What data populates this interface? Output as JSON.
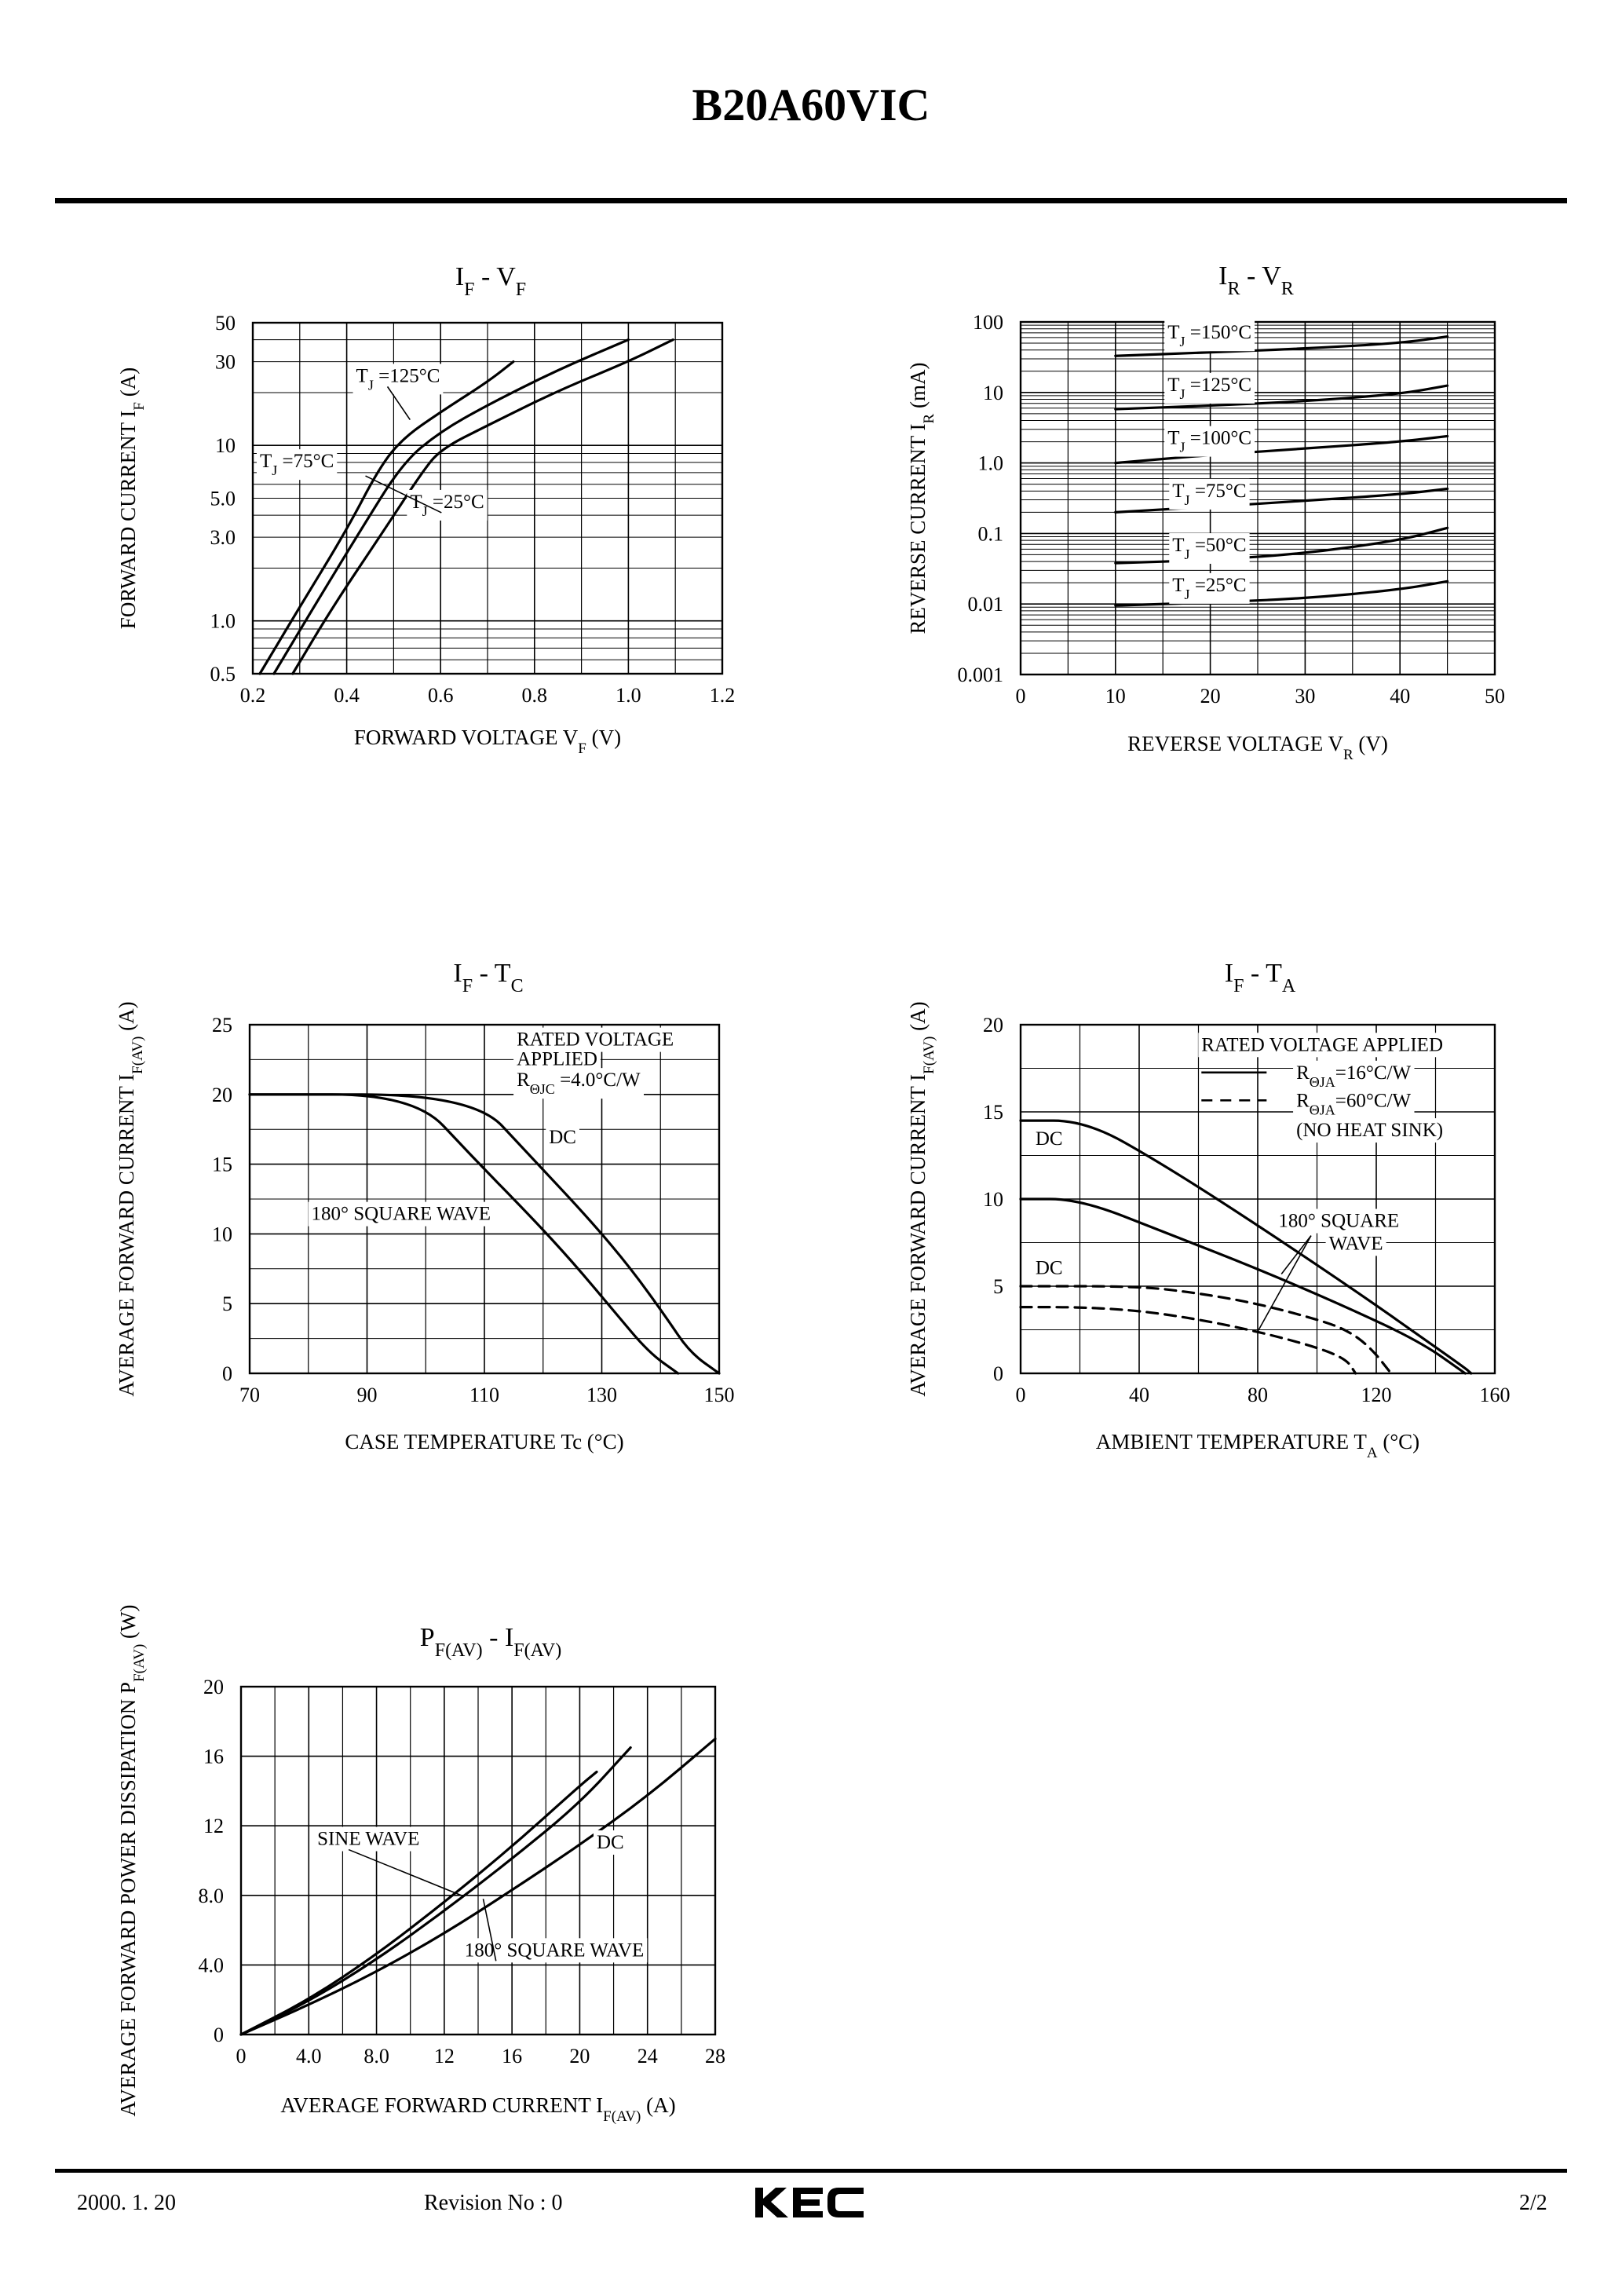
{
  "document": {
    "title": "B20A60VIC",
    "footer": {
      "date": "2000. 1. 20",
      "revision": "Revision No : 0",
      "page": "2/2",
      "brand": "KEC"
    }
  },
  "chart_data": [
    {
      "id": "if_vf",
      "type": "line",
      "title": "I_F - V_F",
      "xlabel": "FORWARD VOLTAGE V_F (V)",
      "ylabel": "FORWARD CURRENT I_F (A)",
      "x_scale": "linear",
      "y_scale": "log",
      "xlim": [
        0.2,
        1.2
      ],
      "ylim": [
        0.5,
        50
      ],
      "x_ticks": [
        "0.2",
        "0.4",
        "0.6",
        "0.8",
        "1.0",
        "1.2"
      ],
      "y_tick_labels": [
        {
          "v": 0.5,
          "t": "0.5"
        },
        {
          "v": 1,
          "t": "1.0"
        },
        {
          "v": 3,
          "t": "3.0"
        },
        {
          "v": 5,
          "t": "5.0"
        },
        {
          "v": 10,
          "t": "10"
        },
        {
          "v": 30,
          "t": "30"
        },
        {
          "v": 50,
          "t": "50"
        }
      ],
      "grid": true,
      "series": [
        {
          "name": "T_J =125°C",
          "points": [
            [
              0.215,
              0.5
            ],
            [
              0.3,
              1.2
            ],
            [
              0.4,
              3.3
            ],
            [
              0.47,
              7.5
            ],
            [
              0.52,
              11
            ],
            [
              0.6,
              15.5
            ],
            [
              0.7,
              23
            ],
            [
              0.755,
              30
            ]
          ]
        },
        {
          "name": "T_J =75°C",
          "points": [
            [
              0.245,
              0.5
            ],
            [
              0.33,
              1.2
            ],
            [
              0.43,
              3.3
            ],
            [
              0.52,
              8
            ],
            [
              0.6,
              12
            ],
            [
              0.7,
              17
            ],
            [
              0.85,
              27
            ],
            [
              1.0,
              40
            ]
          ]
        },
        {
          "name": "T_J =25°C",
          "points": [
            [
              0.285,
              0.5
            ],
            [
              0.37,
              1.2
            ],
            [
              0.48,
              3.3
            ],
            [
              0.56,
              7
            ],
            [
              0.6,
              9.5
            ],
            [
              0.7,
              13
            ],
            [
              0.85,
              20.5
            ],
            [
              1.0,
              30
            ],
            [
              1.095,
              40
            ]
          ]
        }
      ],
      "annotations": [
        {
          "base": "T",
          "sub": "J",
          "text": " =125°C",
          "dx": 0.42,
          "dy": 23,
          "leader_to": [
            0.535,
            14
          ]
        },
        {
          "base": "T",
          "sub": "J",
          "text": " =75°C",
          "dx": 0.215,
          "dy": 7.5
        },
        {
          "base": "T",
          "sub": "J",
          "text": " =25°C",
          "dx": 0.535,
          "dy": 4.4,
          "leader_to": [
            0.44,
            6.7
          ]
        }
      ]
    },
    {
      "id": "ir_vr",
      "type": "line",
      "title": "I_R - V_R",
      "xlabel": "REVERSE VOLTAGE V_R (V)",
      "ylabel": "REVERSE CURRENT I_R (mA)",
      "x_scale": "linear",
      "y_scale": "log",
      "xlim": [
        0,
        50
      ],
      "ylim": [
        0.001,
        100
      ],
      "x_ticks": [
        "0",
        "10",
        "20",
        "30",
        "40",
        "50"
      ],
      "y_tick_labels": [
        {
          "v": 0.001,
          "t": "0.001"
        },
        {
          "v": 0.01,
          "t": "0.01"
        },
        {
          "v": 0.1,
          "t": "0.1"
        },
        {
          "v": 1,
          "t": "1.0"
        },
        {
          "v": 10,
          "t": "10"
        },
        {
          "v": 100,
          "t": "100"
        }
      ],
      "grid": true,
      "series": [
        {
          "name": "T_J =150°C",
          "points": [
            [
              10,
              33
            ],
            [
              20,
              37
            ],
            [
              30,
              42
            ],
            [
              40,
              50
            ],
            [
              45,
              62
            ]
          ]
        },
        {
          "name": "T_J =125°C",
          "points": [
            [
              10,
              5.8
            ],
            [
              20,
              6.5
            ],
            [
              30,
              7.5
            ],
            [
              40,
              9.5
            ],
            [
              45,
              12.5
            ]
          ]
        },
        {
          "name": "T_J =100°C",
          "points": [
            [
              10,
              1.0
            ],
            [
              20,
              1.3
            ],
            [
              30,
              1.6
            ],
            [
              40,
              2.0
            ],
            [
              45,
              2.4
            ]
          ]
        },
        {
          "name": "T_J =75°C",
          "points": [
            [
              10,
              0.2
            ],
            [
              20,
              0.24
            ],
            [
              30,
              0.29
            ],
            [
              40,
              0.36
            ],
            [
              45,
              0.43
            ]
          ]
        },
        {
          "name": "T_J =50°C",
          "points": [
            [
              10,
              0.038
            ],
            [
              20,
              0.042
            ],
            [
              30,
              0.052
            ],
            [
              40,
              0.08
            ],
            [
              45,
              0.12
            ]
          ]
        },
        {
          "name": "T_J =25°C",
          "points": [
            [
              10,
              0.0095
            ],
            [
              20,
              0.0105
            ],
            [
              30,
              0.012
            ],
            [
              40,
              0.016
            ],
            [
              45,
              0.021
            ]
          ]
        }
      ],
      "annotations": [
        {
          "base": "T",
          "sub": "J",
          "text": " =150°C",
          "dx": 15.5,
          "dy": 58
        },
        {
          "base": "T",
          "sub": "J",
          "text": " =125°C",
          "dx": 15.5,
          "dy": 10.5
        },
        {
          "base": "T",
          "sub": "J",
          "text": " =100°C",
          "dx": 15.5,
          "dy": 1.85
        },
        {
          "base": "T",
          "sub": "J",
          "text": " =75°C",
          "dx": 16,
          "dy": 0.33
        },
        {
          "base": "T",
          "sub": "J",
          "text": " =50°C",
          "dx": 16,
          "dy": 0.056
        },
        {
          "base": "T",
          "sub": "J",
          "text": " =25°C",
          "dx": 16,
          "dy": 0.0152
        }
      ]
    },
    {
      "id": "if_tc",
      "type": "line",
      "title": "I_F - T_C",
      "xlabel": "CASE TEMPERATURE Tc (°C)",
      "ylabel": "AVERAGE FORWARD CURRENT I_F(AV) (A)",
      "x_scale": "linear",
      "y_scale": "linear",
      "xlim": [
        70,
        150
      ],
      "ylim": [
        0,
        25
      ],
      "x_ticks": [
        "70",
        "90",
        "110",
        "130",
        "150"
      ],
      "y_ticks": [
        "0",
        "5",
        "10",
        "15",
        "20",
        "25"
      ],
      "grid": true,
      "series": [
        {
          "name": "DC",
          "points": [
            [
              70,
              20
            ],
            [
              108,
              20
            ],
            [
              118,
              15.5
            ],
            [
              128,
              11
            ],
            [
              135,
              7.5
            ],
            [
              141,
              4
            ],
            [
              145,
              1.5
            ],
            [
              150,
              0
            ]
          ]
        },
        {
          "name": "180° SQUARE WAVE",
          "points": [
            [
              70,
              20
            ],
            [
              98,
              20
            ],
            [
              108,
              15.5
            ],
            [
              118,
              11.2
            ],
            [
              125,
              8
            ],
            [
              132,
              4.5
            ],
            [
              138,
              1.5
            ],
            [
              143,
              0
            ]
          ]
        }
      ],
      "annotations": [
        {
          "text": "RATED VOLTAGE",
          "dx": 115.5,
          "dy": 23.5
        },
        {
          "text": "APPLIED",
          "dx": 115.5,
          "dy": 22.1
        },
        {
          "base": "R",
          "sub": "ΘJC",
          "text": " =4.0°C/W",
          "dx": 115.5,
          "dy": 20.6
        },
        {
          "text": "DC",
          "dx": 121,
          "dy": 16.5
        },
        {
          "text": "180° SQUARE WAVE",
          "dx": 80.5,
          "dy": 11
        }
      ],
      "notes": [
        "RATED VOLTAGE APPLIED",
        "R_ΘJC =4.0°C/W"
      ]
    },
    {
      "id": "if_ta",
      "type": "line",
      "title": "I_F - T_A",
      "xlabel": "AMBIENT TEMPERATURE T_A (°C)",
      "ylabel": "AVERAGE FORWARD CURRENT I_F(AV) (A)",
      "x_scale": "linear",
      "y_scale": "linear",
      "xlim": [
        0,
        160
      ],
      "ylim": [
        0,
        20
      ],
      "x_ticks": [
        "0",
        "40",
        "80",
        "120",
        "160"
      ],
      "y_ticks": [
        "0",
        "5",
        "10",
        "15",
        "20"
      ],
      "grid": true,
      "series": [
        {
          "name": "DC (R_ΘJA=16°C/W)",
          "points": [
            [
              0,
              14.5
            ],
            [
              22,
              14.5
            ],
            [
              48,
              12
            ],
            [
              80,
              8.5
            ],
            [
              115,
              4.5
            ],
            [
              135,
              2.1
            ],
            [
              150,
              0.3
            ],
            [
              152,
              0
            ]
          ]
        },
        {
          "name": "180° SQUARE WAVE (R_ΘJA=16°C/W)",
          "points": [
            [
              0,
              10
            ],
            [
              20,
              10
            ],
            [
              50,
              8
            ],
            [
              80,
              6
            ],
            [
              110,
              3.8
            ],
            [
              135,
              1.8
            ],
            [
              150,
              0
            ]
          ]
        },
        {
          "name": "DC (R_ΘJA=60°C/W)",
          "points": [
            [
              0,
              5
            ],
            [
              40,
              5
            ],
            [
              60,
              4.6
            ],
            [
              80,
              4
            ],
            [
              100,
              3.1
            ],
            [
              110,
              2.5
            ],
            [
              118,
              1.5
            ],
            [
              125,
              0
            ]
          ]
        },
        {
          "name": "180° SQUARE WAVE (R_ΘJA=60°C/W)",
          "points": [
            [
              0,
              3.8
            ],
            [
              20,
              3.8
            ],
            [
              40,
              3.6
            ],
            [
              60,
              3.1
            ],
            [
              80,
              2.4
            ],
            [
              100,
              1.5
            ],
            [
              110,
              0.8
            ],
            [
              113,
              0
            ]
          ]
        }
      ],
      "annotations": [
        {
          "text": "RATED VOLTAGE APPLIED",
          "dx": 61,
          "dy": 18.5
        },
        {
          "base": "R",
          "sub": "ΘJA",
          "text": "=16°C/W",
          "dx": 93,
          "dy": 16.9
        },
        {
          "base": "R",
          "sub": "ΘJA",
          "text": "=60°C/W",
          "dx": 93,
          "dy": 15.3
        },
        {
          "text": "(NO HEAT SINK)",
          "dx": 93,
          "dy": 13.6
        },
        {
          "text": "DC",
          "dx": 5,
          "dy": 13.1
        },
        {
          "text": "DC",
          "dx": 5,
          "dy": 5.7
        },
        {
          "text": "180°  SQUARE",
          "dx": 87,
          "dy": 8.4
        },
        {
          "text": "WAVE",
          "dx": 104,
          "dy": 7.1
        }
      ],
      "legend": [
        {
          "style": "solid",
          "label": "R_ΘJA=16°C/W"
        },
        {
          "style": "dashed",
          "label": "R_ΘJA=60°C/W"
        }
      ],
      "notes": [
        "RATED VOLTAGE APPLIED",
        "(NO HEAT SINK)"
      ]
    },
    {
      "id": "pf_if",
      "type": "line",
      "title": "P_F(AV) - I_F(AV)",
      "xlabel": "AVERAGE FORWARD CURRENT I_F(AV) (A)",
      "ylabel": "AVERAGE FORWARD POWER DISSIPATION P_F(AV) (W)",
      "x_scale": "linear",
      "y_scale": "linear",
      "xlim": [
        0,
        28
      ],
      "ylim": [
        0,
        20
      ],
      "x_ticks": [
        "0",
        "4.0",
        "8.0",
        "12",
        "16",
        "20",
        "24",
        "28"
      ],
      "y_ticks": [
        "0",
        "4.0",
        "8.0",
        "12",
        "16",
        "20"
      ],
      "grid": true,
      "series": [
        {
          "name": "SINE WAVE",
          "points": [
            [
              0,
              0
            ],
            [
              4,
              2.0
            ],
            [
              8,
              4.6
            ],
            [
              12,
              7.6
            ],
            [
              16,
              10.8
            ],
            [
              20,
              14.3
            ],
            [
              21,
              15.1
            ]
          ]
        },
        {
          "name": "180° SQUARE WAVE",
          "points": [
            [
              0,
              0
            ],
            [
              4,
              1.9
            ],
            [
              8,
              4.3
            ],
            [
              12,
              7.1
            ],
            [
              16,
              10.1
            ],
            [
              20,
              13.3
            ],
            [
              23,
              16.5
            ]
          ]
        },
        {
          "name": "DC",
          "points": [
            [
              0,
              0
            ],
            [
              4,
              1.7
            ],
            [
              8,
              3.6
            ],
            [
              12,
              5.8
            ],
            [
              16,
              8.3
            ],
            [
              20,
              10.9
            ],
            [
              24,
              13.7
            ],
            [
              28,
              17
            ]
          ]
        }
      ],
      "annotations": [
        {
          "text": "SINE WAVE",
          "dx": 4.5,
          "dy": 10.9,
          "leader_to": [
            13,
            8.0
          ]
        },
        {
          "text": "DC",
          "dx": 21,
          "dy": 10.7
        },
        {
          "text": "180° SQUARE WAVE",
          "dx": 13.2,
          "dy": 4.5,
          "leader_to": [
            14.3,
            7.8
          ]
        }
      ]
    }
  ]
}
